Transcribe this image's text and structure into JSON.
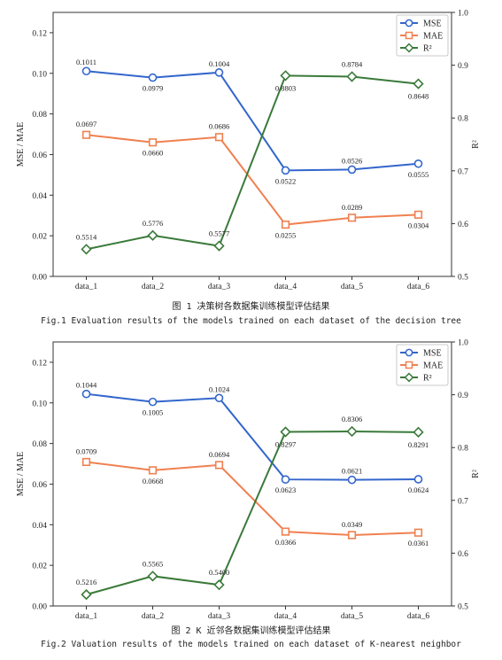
{
  "chart_data": [
    {
      "type": "line",
      "categories": [
        "data_1",
        "data_2",
        "data_3",
        "data_4",
        "data_5",
        "data_6"
      ],
      "ylabel": "MSE / MAE",
      "y2label": "R²",
      "ylim": [
        0,
        0.13
      ],
      "yticks": [
        "0.00",
        "0.02",
        "0.04",
        "0.06",
        "0.08",
        "0.10",
        "0.12"
      ],
      "y2lim": [
        0.5,
        1.0
      ],
      "y2ticks": [
        "0.5",
        "0.6",
        "0.7",
        "0.8",
        "0.9",
        "1.0"
      ],
      "legend_position": "top-right",
      "series": [
        {
          "name": "MSE",
          "axis": "left",
          "color": "#3366cc",
          "marker": "circle",
          "values": [
            0.1011,
            0.0979,
            0.1004,
            0.0522,
            0.0526,
            0.0555
          ],
          "labels": [
            "0.1011",
            "0.0979",
            "0.1004",
            "0.0522",
            "0.0526",
            "0.0555"
          ]
        },
        {
          "name": "MAE",
          "axis": "left",
          "color": "#f08050",
          "marker": "square",
          "values": [
            0.0697,
            0.066,
            0.0686,
            0.0255,
            0.0289,
            0.0304
          ],
          "labels": [
            "0.0697",
            "0.0660",
            "0.0686",
            "0.0255",
            "0.0289",
            "0.0304"
          ]
        },
        {
          "name": "R²",
          "axis": "right",
          "color": "#3a7a3a",
          "marker": "diamond",
          "values": [
            0.5514,
            0.5776,
            0.5577,
            0.8803,
            0.8784,
            0.8648
          ],
          "labels": [
            "0.5514",
            "0.5776",
            "0.5577",
            "0.8803",
            "0.8784",
            "0.8648"
          ]
        }
      ]
    },
    {
      "type": "line",
      "categories": [
        "data_1",
        "data_2",
        "data_3",
        "data_4",
        "data_5",
        "data_6"
      ],
      "ylabel": "MSE / MAE",
      "y2label": "R²",
      "ylim": [
        0,
        0.13
      ],
      "yticks": [
        "0.00",
        "0.02",
        "0.04",
        "0.06",
        "0.08",
        "0.10",
        "0.12"
      ],
      "y2lim": [
        0.5,
        1.0
      ],
      "y2ticks": [
        "0.5",
        "0.6",
        "0.7",
        "0.8",
        "0.9",
        "1.0"
      ],
      "legend_position": "top-right",
      "series": [
        {
          "name": "MSE",
          "axis": "left",
          "color": "#3366cc",
          "marker": "circle",
          "values": [
            0.1044,
            0.1005,
            0.1024,
            0.0623,
            0.0621,
            0.0624
          ],
          "labels": [
            "0.1044",
            "0.1005",
            "0.1024",
            "0.0623",
            "0.0621",
            "0.0624"
          ]
        },
        {
          "name": "MAE",
          "axis": "left",
          "color": "#f08050",
          "marker": "square",
          "values": [
            0.0709,
            0.0668,
            0.0694,
            0.0366,
            0.0349,
            0.0361
          ],
          "labels": [
            "0.0709",
            "0.0668",
            "0.0694",
            "0.0366",
            "0.0349",
            "0.0361"
          ]
        },
        {
          "name": "R²",
          "axis": "right",
          "color": "#3a7a3a",
          "marker": "diamond",
          "values": [
            0.5216,
            0.5565,
            0.54,
            0.8297,
            0.8306,
            0.8291
          ],
          "labels": [
            "0.5216",
            "0.5565",
            "0.5400",
            "0.8297",
            "0.8306",
            "0.8291"
          ]
        }
      ]
    }
  ],
  "captions": [
    {
      "cn": "图 1 决策树各数据集训练模型评估结果",
      "en": "Fig.1 Evaluation results of the models trained on each dataset of the decision tree"
    },
    {
      "cn": "图 2 K 近邻各数据集训练模型评估结果",
      "en": "Fig.2 Valuation results of the models trained on each dataset of K-nearest neighbor"
    }
  ]
}
